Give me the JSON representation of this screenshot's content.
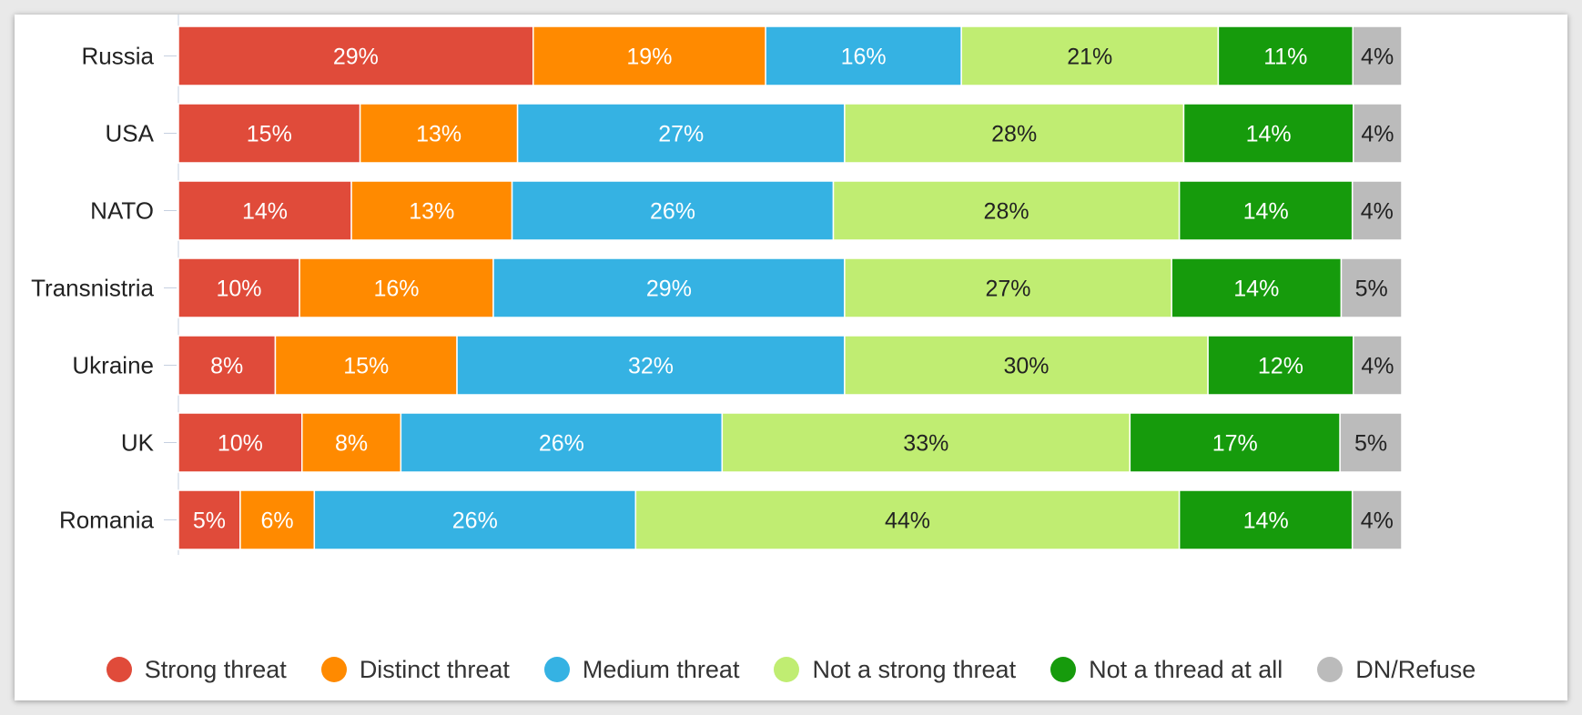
{
  "chart_data": {
    "type": "bar",
    "orientation": "horizontal",
    "stacked": true,
    "categories": [
      "Russia",
      "USA",
      "NATO",
      "Transnistria",
      "Ukraine",
      "UK",
      "Romania"
    ],
    "series": [
      {
        "name": "Strong threat",
        "color": "#e04b3a",
        "text_color": "#ffffff",
        "values": [
          29,
          15,
          14,
          10,
          8,
          10,
          5
        ]
      },
      {
        "name": "Distinct threat",
        "color": "#ff8a00",
        "text_color": "#ffffff",
        "values": [
          19,
          13,
          13,
          16,
          15,
          8,
          6
        ]
      },
      {
        "name": "Medium threat",
        "color": "#35b2e3",
        "text_color": "#ffffff",
        "values": [
          16,
          27,
          26,
          29,
          32,
          26,
          26
        ]
      },
      {
        "name": "Not a strong threat",
        "color": "#c0ed72",
        "text_color": "#222222",
        "values": [
          21,
          28,
          28,
          27,
          30,
          33,
          44
        ]
      },
      {
        "name": "Not a thread at all",
        "color": "#169b0c",
        "text_color": "#ffffff",
        "values": [
          11,
          14,
          14,
          14,
          12,
          17,
          14
        ]
      },
      {
        "name": "DN/Refuse",
        "color": "#bbbbbb",
        "text_color": "#222222",
        "values": [
          4,
          4,
          4,
          5,
          4,
          5,
          4
        ]
      }
    ],
    "value_suffix": "%",
    "legend_position": "bottom",
    "grid": false
  }
}
